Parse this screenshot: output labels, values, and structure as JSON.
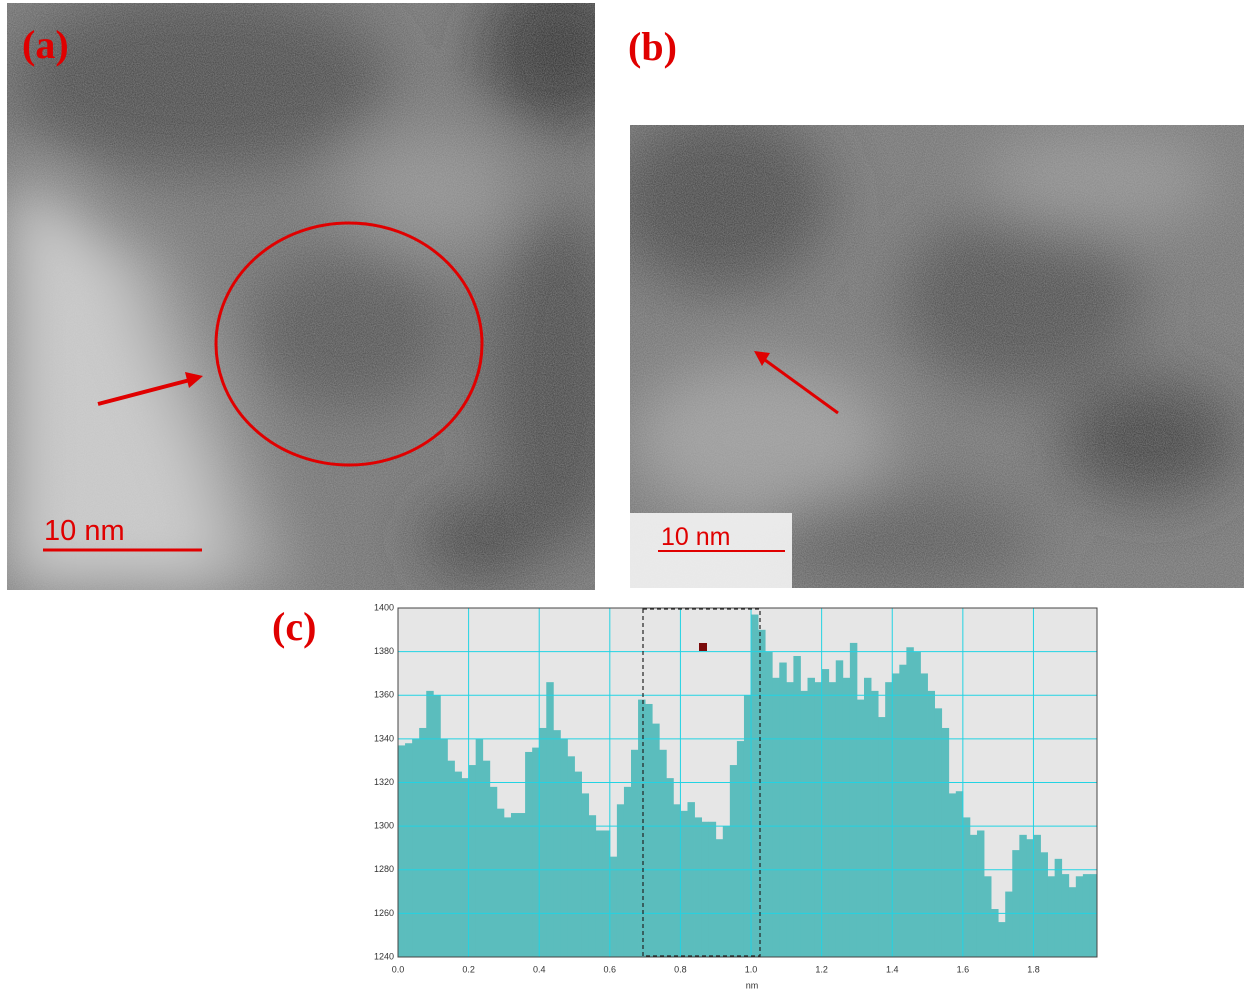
{
  "panels": [
    {
      "label": "(a)",
      "scale_bar": "10 nm"
    },
    {
      "label": "(b)",
      "scale_bar": "10 nm"
    }
  ],
  "chart_data": {
    "type": "bar",
    "label": "(c)",
    "xlabel": "nm",
    "color": "#5bbdbd",
    "grid": true,
    "xlim": [
      0,
      1.98
    ],
    "ylim": [
      1240,
      1400
    ],
    "xticks": [
      {
        "value": 0,
        "label": "0.0"
      },
      0.2,
      0.4,
      0.6,
      0.8,
      {
        "value": 1,
        "label": "1.0"
      },
      1.2,
      1.4,
      1.6,
      1.8
    ],
    "yticks": [
      1240,
      1260,
      1280,
      1300,
      1320,
      1340,
      1360,
      1380,
      1400
    ],
    "x": [
      0,
      0.02,
      0.04,
      0.06,
      0.08,
      0.1,
      0.12,
      0.14,
      0.16,
      0.18,
      0.2,
      0.22,
      0.24,
      0.26,
      0.28,
      0.3,
      0.32,
      0.34,
      0.36,
      0.38,
      0.4,
      0.42,
      0.44,
      0.46,
      0.48,
      0.5,
      0.52,
      0.54,
      0.56,
      0.58,
      0.6,
      0.62,
      0.64,
      0.66,
      0.68,
      0.7,
      0.72,
      0.74,
      0.76,
      0.78,
      0.8,
      0.82,
      0.84,
      0.86,
      0.88,
      0.9,
      0.92,
      0.94,
      0.96,
      0.98,
      1,
      1.02,
      1.04,
      1.06,
      1.08,
      1.1,
      1.12,
      1.14,
      1.16,
      1.18,
      1.2,
      1.22,
      1.24,
      1.26,
      1.28,
      1.3,
      1.32,
      1.34,
      1.36,
      1.38,
      1.4,
      1.42,
      1.44,
      1.46,
      1.48,
      1.5,
      1.52,
      1.54,
      1.56,
      1.58,
      1.6,
      1.62,
      1.64,
      1.66,
      1.68,
      1.7,
      1.72,
      1.74,
      1.76,
      1.78,
      1.8,
      1.82,
      1.84,
      1.86,
      1.88,
      1.9,
      1.92,
      1.94,
      1.96
    ],
    "values": [
      1337,
      1338,
      1340,
      1345,
      1362,
      1360,
      1340,
      1330,
      1325,
      1322,
      1328,
      1340,
      1330,
      1318,
      1308,
      1304,
      1306,
      1306,
      1334,
      1336,
      1345,
      1366,
      1344,
      1340,
      1332,
      1325,
      1315,
      1305,
      1298,
      1298,
      1286,
      1310,
      1318,
      1335,
      1358,
      1356,
      1347,
      1335,
      1322,
      1310,
      1307,
      1311,
      1304,
      1302,
      1302,
      1294,
      1300,
      1328,
      1339,
      1360,
      1397,
      1390,
      1380,
      1368,
      1375,
      1366,
      1378,
      1362,
      1368,
      1366,
      1372,
      1366,
      1376,
      1368,
      1384,
      1358,
      1368,
      1362,
      1350,
      1366,
      1370,
      1374,
      1382,
      1380,
      1370,
      1362,
      1354,
      1345,
      1315,
      1316,
      1304,
      1296,
      1298,
      1277,
      1262,
      1256,
      1270,
      1289,
      1296,
      1294,
      1296,
      1288,
      1277,
      1285,
      1278,
      1272,
      1277,
      1278,
      1278
    ]
  }
}
